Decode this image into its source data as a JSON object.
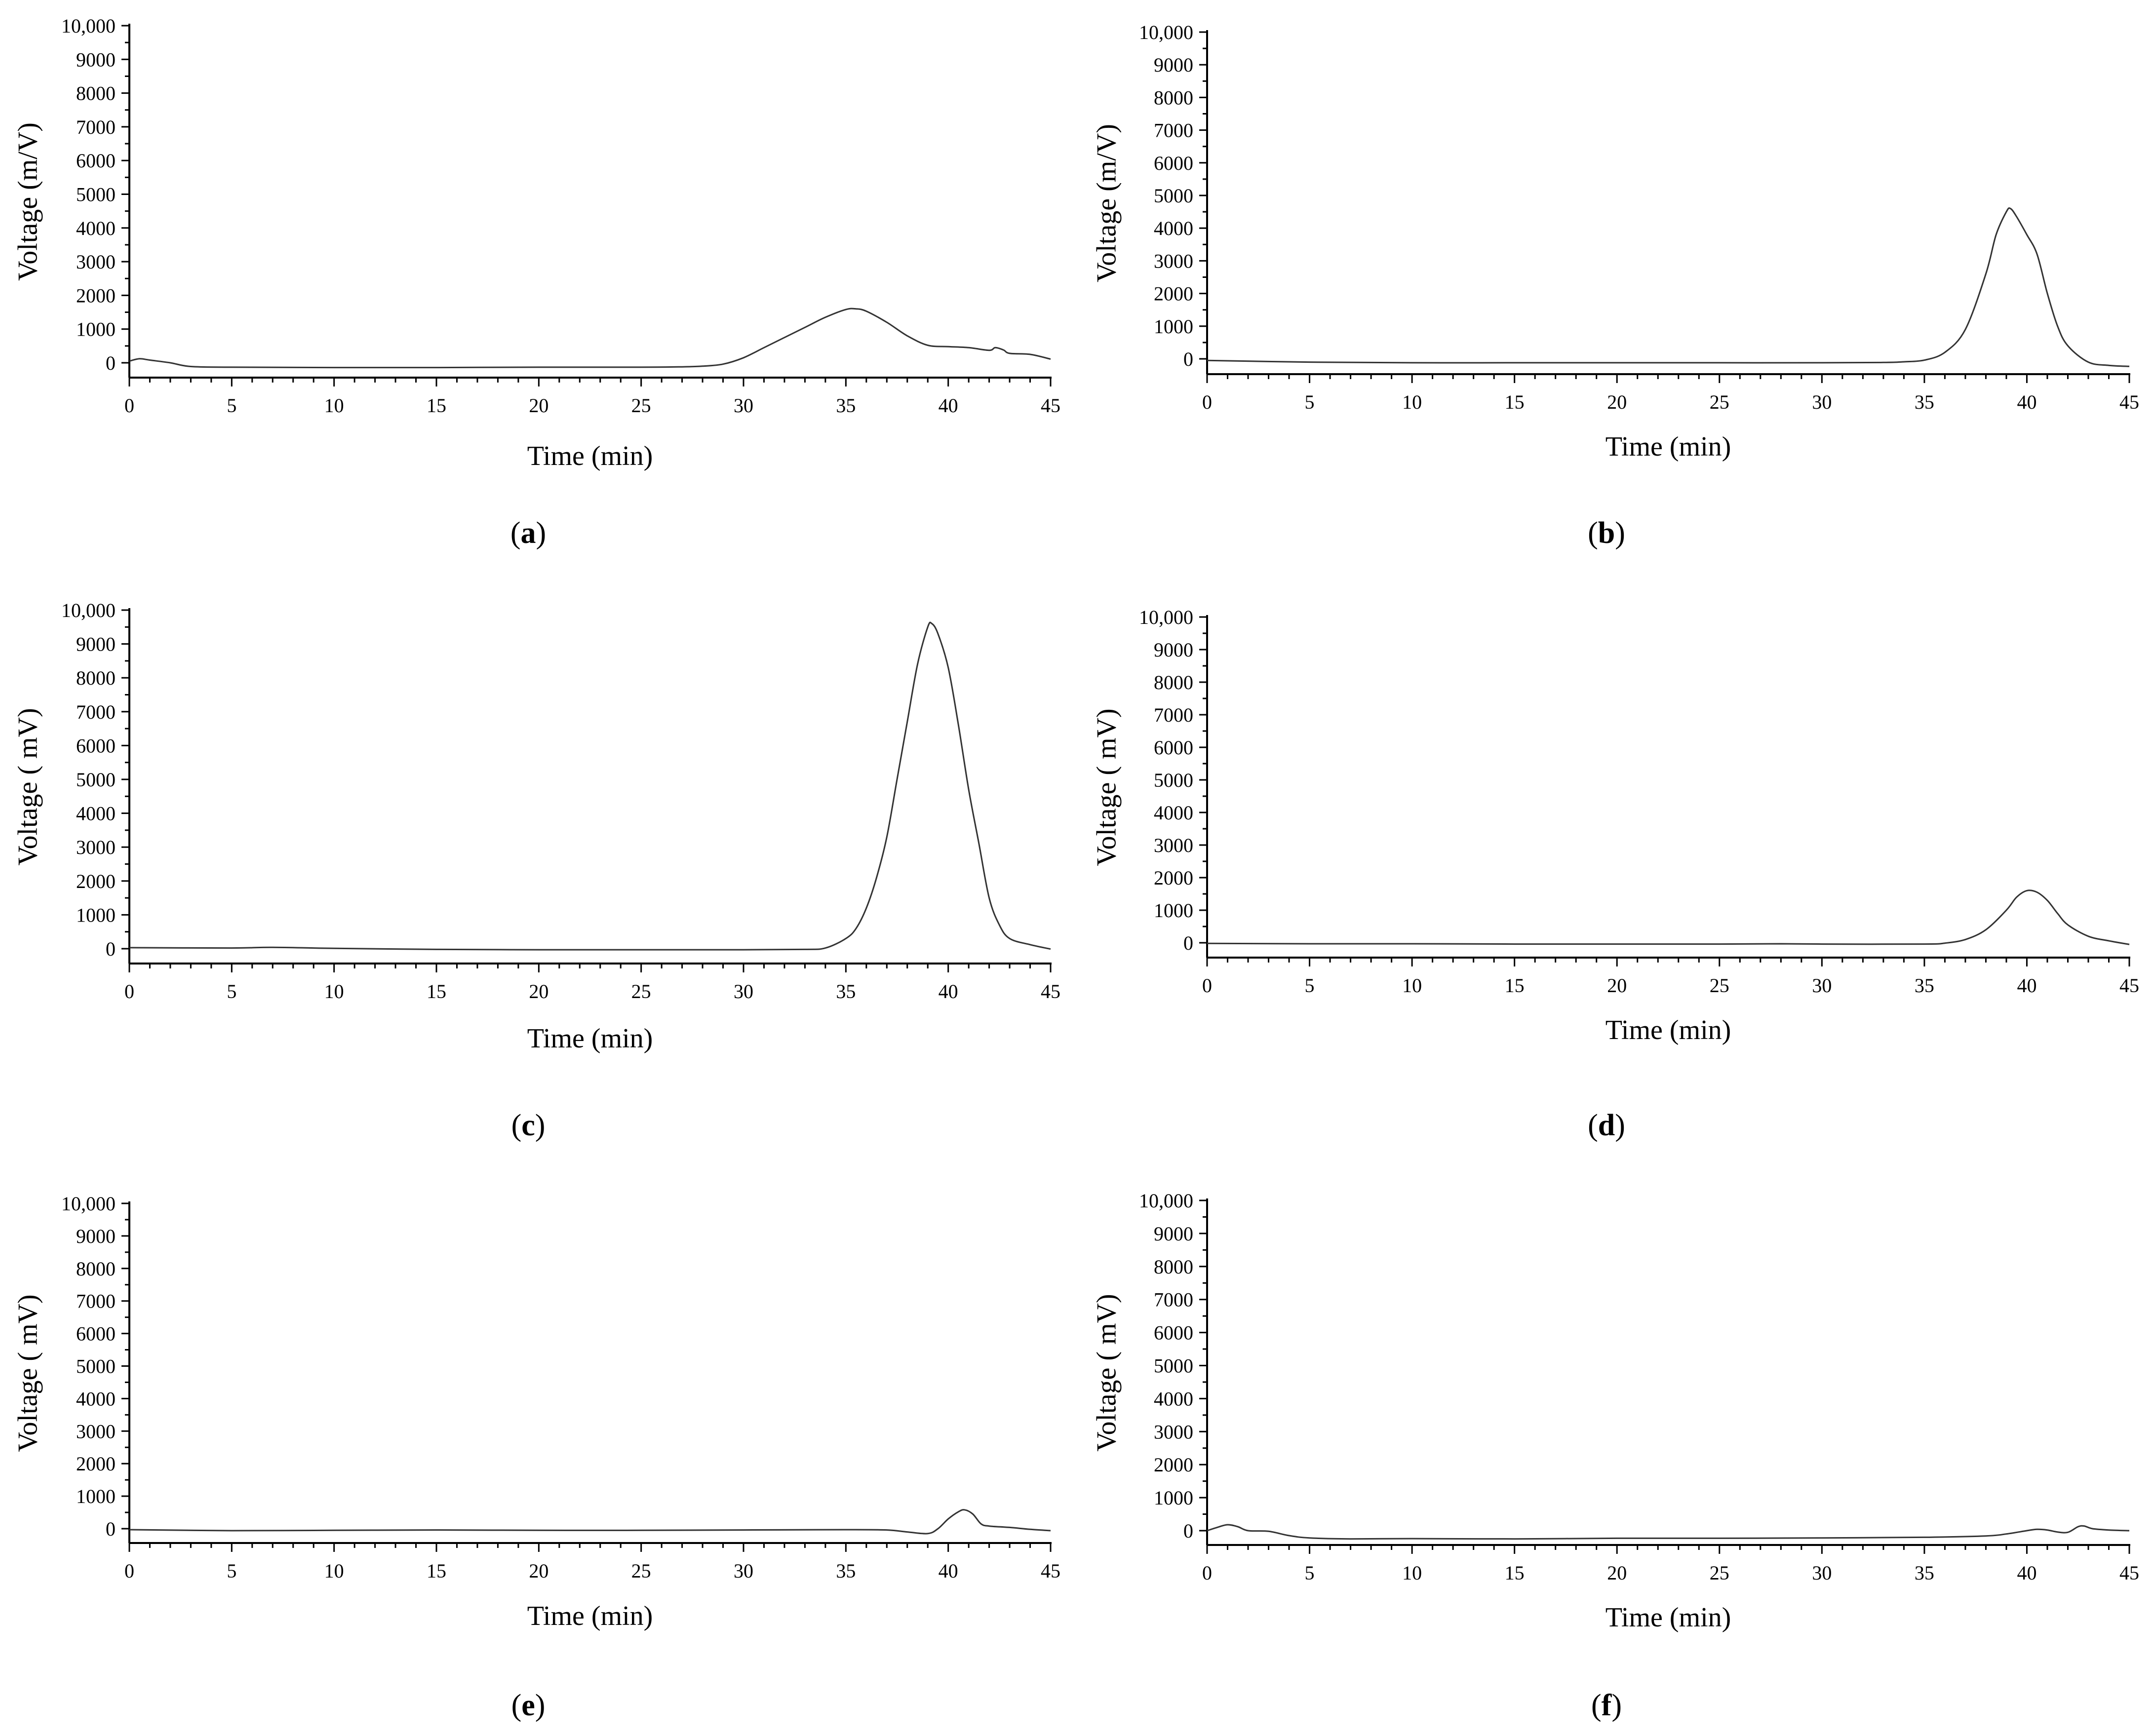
{
  "chart_data": [
    {
      "type": "line",
      "panel_label": "a",
      "xlabel": "Time (min)",
      "ylabel": "Voltage (m/V)",
      "xlim": [
        0,
        45
      ],
      "ylim": [
        0,
        10000
      ],
      "x_ticks": [
        "0",
        "5",
        "10",
        "15",
        "20",
        "25",
        "30",
        "35",
        "40",
        "45"
      ],
      "y_ticks": [
        "0",
        "1000",
        "2000",
        "3000",
        "4000",
        "5000",
        "6000",
        "7000",
        "8000",
        "9000",
        "10,000"
      ],
      "grid": false,
      "series": [
        {
          "points": [
            [
              0,
              50
            ],
            [
              0.5,
              120
            ],
            [
              1,
              80
            ],
            [
              2,
              0
            ],
            [
              3,
              -110
            ],
            [
              5,
              -130
            ],
            [
              10,
              -140
            ],
            [
              15,
              -140
            ],
            [
              20,
              -130
            ],
            [
              25,
              -130
            ],
            [
              27,
              -120
            ],
            [
              28,
              -100
            ],
            [
              29,
              -40
            ],
            [
              30,
              150
            ],
            [
              31,
              450
            ],
            [
              32,
              750
            ],
            [
              33,
              1050
            ],
            [
              34,
              1350
            ],
            [
              35,
              1580
            ],
            [
              35.5,
              1600
            ],
            [
              36,
              1530
            ],
            [
              37,
              1200
            ],
            [
              38,
              800
            ],
            [
              39,
              520
            ],
            [
              40,
              480
            ],
            [
              41,
              450
            ],
            [
              42,
              370
            ],
            [
              42.3,
              450
            ],
            [
              42.7,
              380
            ],
            [
              43,
              280
            ],
            [
              44,
              250
            ],
            [
              45,
              110
            ]
          ]
        }
      ]
    },
    {
      "type": "line",
      "panel_label": "b",
      "xlabel": "Time (min)",
      "ylabel": "Voltage (m/V)",
      "xlim": [
        0,
        45
      ],
      "ylim": [
        0,
        10000
      ],
      "x_ticks": [
        "0",
        "5",
        "10",
        "15",
        "20",
        "25",
        "30",
        "35",
        "40",
        "45"
      ],
      "y_ticks": [
        "0",
        "1000",
        "2000",
        "3000",
        "4000",
        "5000",
        "6000",
        "7000",
        "8000",
        "9000",
        "10,000"
      ],
      "grid": false,
      "series": [
        {
          "points": [
            [
              0,
              -50
            ],
            [
              5,
              -100
            ],
            [
              10,
              -120
            ],
            [
              15,
              -120
            ],
            [
              20,
              -120
            ],
            [
              25,
              -120
            ],
            [
              30,
              -120
            ],
            [
              33,
              -110
            ],
            [
              34,
              -90
            ],
            [
              35,
              -40
            ],
            [
              36,
              200
            ],
            [
              37,
              900
            ],
            [
              38,
              2600
            ],
            [
              38.5,
              3800
            ],
            [
              39,
              4500
            ],
            [
              39.2,
              4600
            ],
            [
              39.5,
              4350
            ],
            [
              40,
              3800
            ],
            [
              40.5,
              3200
            ],
            [
              41,
              2000
            ],
            [
              41.5,
              1000
            ],
            [
              42,
              400
            ],
            [
              43,
              -100
            ],
            [
              44,
              -200
            ],
            [
              45,
              -230
            ]
          ]
        }
      ]
    },
    {
      "type": "line",
      "panel_label": "c",
      "xlabel": "Time (min)",
      "ylabel": "Voltage ( mV)",
      "xlim": [
        0,
        45
      ],
      "ylim": [
        0,
        10000
      ],
      "x_ticks": [
        "0",
        "5",
        "10",
        "15",
        "20",
        "25",
        "30",
        "35",
        "40",
        "45"
      ],
      "y_ticks": [
        "0",
        "1000",
        "2000",
        "3000",
        "4000",
        "5000",
        "6000",
        "7000",
        "8000",
        "9000",
        "10,000"
      ],
      "grid": false,
      "series": [
        {
          "points": [
            [
              0,
              30
            ],
            [
              5,
              20
            ],
            [
              7,
              40
            ],
            [
              10,
              10
            ],
            [
              15,
              -20
            ],
            [
              20,
              -30
            ],
            [
              25,
              -30
            ],
            [
              30,
              -30
            ],
            [
              33,
              -20
            ],
            [
              34,
              20
            ],
            [
              35,
              300
            ],
            [
              35.5,
              600
            ],
            [
              36,
              1200
            ],
            [
              36.5,
              2100
            ],
            [
              37,
              3300
            ],
            [
              37.5,
              5000
            ],
            [
              38,
              6700
            ],
            [
              38.5,
              8400
            ],
            [
              39,
              9500
            ],
            [
              39.2,
              9600
            ],
            [
              39.5,
              9300
            ],
            [
              40,
              8300
            ],
            [
              40.5,
              6600
            ],
            [
              41,
              4700
            ],
            [
              41.5,
              3100
            ],
            [
              42,
              1500
            ],
            [
              42.5,
              700
            ],
            [
              43,
              300
            ],
            [
              44,
              120
            ],
            [
              45,
              -10
            ]
          ]
        }
      ]
    },
    {
      "type": "line",
      "panel_label": "d",
      "xlabel": "Time (min)",
      "ylabel": "Voltage ( mV)",
      "xlim": [
        0,
        45
      ],
      "ylim": [
        0,
        10000
      ],
      "x_ticks": [
        "0",
        "5",
        "10",
        "15",
        "20",
        "25",
        "30",
        "35",
        "40",
        "45"
      ],
      "y_ticks": [
        "0",
        "1000",
        "2000",
        "3000",
        "4000",
        "5000",
        "6000",
        "7000",
        "8000",
        "9000",
        "10,000"
      ],
      "grid": false,
      "series": [
        {
          "points": [
            [
              0,
              -20
            ],
            [
              5,
              -30
            ],
            [
              10,
              -30
            ],
            [
              15,
              -40
            ],
            [
              20,
              -40
            ],
            [
              25,
              -40
            ],
            [
              28,
              -30
            ],
            [
              30,
              -40
            ],
            [
              35,
              -40
            ],
            [
              36,
              -10
            ],
            [
              37,
              100
            ],
            [
              38,
              400
            ],
            [
              39,
              1000
            ],
            [
              39.5,
              1400
            ],
            [
              40,
              1600
            ],
            [
              40.5,
              1550
            ],
            [
              41,
              1300
            ],
            [
              41.5,
              900
            ],
            [
              42,
              550
            ],
            [
              43,
              200
            ],
            [
              44,
              60
            ],
            [
              45,
              -50
            ]
          ]
        }
      ]
    },
    {
      "type": "line",
      "panel_label": "e",
      "xlabel": "Time (min)",
      "ylabel": "Voltage ( mV)",
      "xlim": [
        0,
        45
      ],
      "ylim": [
        0,
        10000
      ],
      "x_ticks": [
        "0",
        "5",
        "10",
        "15",
        "20",
        "25",
        "30",
        "35",
        "40",
        "45"
      ],
      "y_ticks": [
        "0",
        "1000",
        "2000",
        "3000",
        "4000",
        "5000",
        "6000",
        "7000",
        "8000",
        "9000",
        "10,000"
      ],
      "grid": false,
      "series": [
        {
          "points": [
            [
              0,
              -30
            ],
            [
              5,
              -60
            ],
            [
              10,
              -50
            ],
            [
              15,
              -40
            ],
            [
              20,
              -50
            ],
            [
              25,
              -50
            ],
            [
              30,
              -40
            ],
            [
              35,
              -30
            ],
            [
              37,
              -40
            ],
            [
              38,
              -100
            ],
            [
              39,
              -150
            ],
            [
              39.5,
              0
            ],
            [
              40,
              300
            ],
            [
              40.5,
              520
            ],
            [
              40.8,
              580
            ],
            [
              41.2,
              450
            ],
            [
              41.6,
              150
            ],
            [
              42,
              80
            ],
            [
              43,
              40
            ],
            [
              44,
              -20
            ],
            [
              45,
              -60
            ]
          ]
        }
      ]
    },
    {
      "type": "line",
      "panel_label": "f",
      "xlabel": "Time (min)",
      "ylabel": "Voltage ( mV)",
      "xlim": [
        0,
        45
      ],
      "ylim": [
        0,
        10000
      ],
      "x_ticks": [
        "0",
        "5",
        "10",
        "15",
        "20",
        "25",
        "30",
        "35",
        "40",
        "45"
      ],
      "y_ticks": [
        "0",
        "1000",
        "2000",
        "3000",
        "4000",
        "5000",
        "6000",
        "7000",
        "8000",
        "9000",
        "10,000"
      ],
      "grid": false,
      "series": [
        {
          "points": [
            [
              0,
              0
            ],
            [
              0.5,
              100
            ],
            [
              1,
              180
            ],
            [
              1.5,
              120
            ],
            [
              2,
              0
            ],
            [
              3,
              -20
            ],
            [
              4,
              -150
            ],
            [
              5,
              -220
            ],
            [
              7,
              -250
            ],
            [
              10,
              -240
            ],
            [
              15,
              -250
            ],
            [
              20,
              -230
            ],
            [
              25,
              -230
            ],
            [
              30,
              -220
            ],
            [
              35,
              -200
            ],
            [
              38,
              -160
            ],
            [
              39,
              -100
            ],
            [
              40,
              0
            ],
            [
              40.5,
              40
            ],
            [
              41,
              20
            ],
            [
              41.5,
              -40
            ],
            [
              42,
              -50
            ],
            [
              42.5,
              120
            ],
            [
              42.8,
              140
            ],
            [
              43.2,
              60
            ],
            [
              44,
              20
            ],
            [
              45,
              0
            ]
          ]
        }
      ]
    }
  ]
}
